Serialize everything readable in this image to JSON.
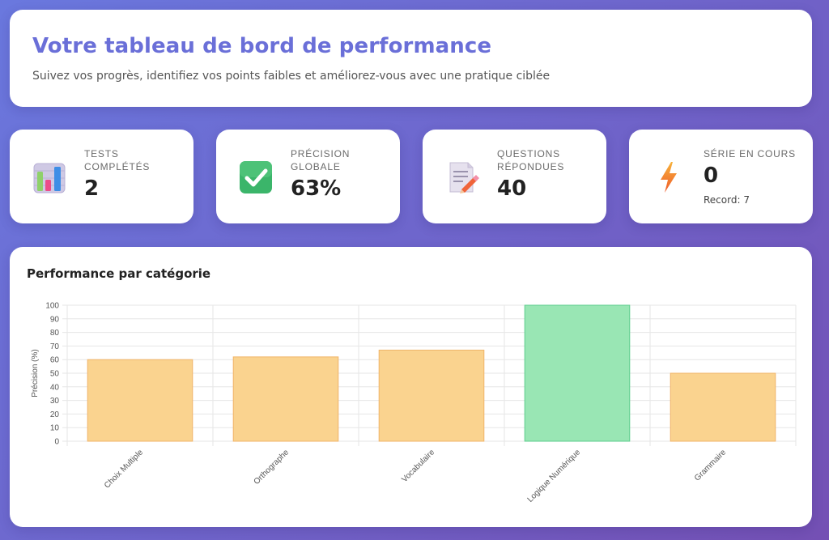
{
  "header": {
    "title": "Votre tableau de bord de performance",
    "subtitle": "Suivez vos progrès, identifiez vos points faibles et améliorez-vous avec une pratique ciblée"
  },
  "stats": [
    {
      "label": "Tests complétés",
      "value": "2",
      "icon": "bar-chart-icon"
    },
    {
      "label": "Précision globale",
      "value": "63%",
      "icon": "check-mark-icon"
    },
    {
      "label": "Questions répondues",
      "value": "40",
      "icon": "memo-pencil-icon"
    },
    {
      "label": "Série en cours",
      "value": "0",
      "sub": "Record: 7",
      "icon": "lightning-icon"
    }
  ],
  "chart_section": {
    "title": "Performance par catégorie"
  },
  "chart_data": {
    "type": "bar",
    "categories": [
      "Choix Multiple",
      "Orthographe",
      "Vocabulaire",
      "Logique Numérique",
      "Grammaire"
    ],
    "values": [
      60,
      62,
      67,
      100,
      50
    ],
    "bar_colors": [
      "#fad38f",
      "#fad38f",
      "#fad38f",
      "#99e6b4",
      "#fad38f"
    ],
    "bar_border_colors": [
      "#f0b469",
      "#f0b469",
      "#f0b469",
      "#5ccc8c",
      "#f0b469"
    ],
    "ylabel": "Précision (%)",
    "ylim": [
      0,
      100
    ],
    "ytick_step": 10,
    "grid": true
  },
  "colors": {
    "accent": "#6a6fd8",
    "background_start": "#6a78de",
    "background_end": "#7450b4"
  }
}
